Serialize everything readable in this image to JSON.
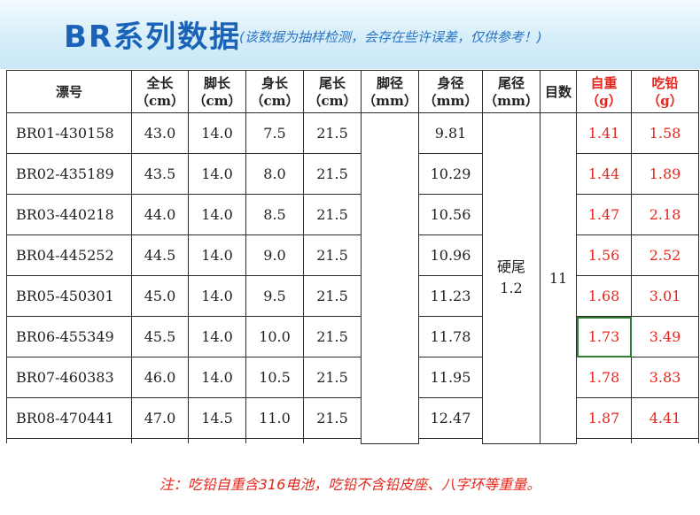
{
  "header": {
    "title": "BR系列数据",
    "subtitle": "(该数据为抽样检测，会存在些许误差，仅供参考！)"
  },
  "table": {
    "headers": [
      {
        "name": "漂号",
        "unit": ""
      },
      {
        "name": "全长",
        "unit": "（cm）"
      },
      {
        "name": "脚长",
        "unit": "（cm）"
      },
      {
        "name": "身长",
        "unit": "（cm）"
      },
      {
        "name": "尾长",
        "unit": "（cm）"
      },
      {
        "name": "脚径",
        "unit": "（mm）"
      },
      {
        "name": "身径",
        "unit": "（mm）"
      },
      {
        "name": "尾径",
        "unit": "（mm）"
      },
      {
        "name": "目数",
        "unit": ""
      },
      {
        "name": "自重",
        "unit": "（g）"
      },
      {
        "name": "吃铅",
        "unit": "（g）"
      }
    ],
    "shared": {
      "tail_diameter": "硬尾\n1.2",
      "mesh": "11"
    },
    "rows": [
      {
        "code": "BR01-430158",
        "total": "43.0",
        "foot": "14.0",
        "body": "7.5",
        "tail": "21.5",
        "body_d": "9.81",
        "weight": "1.41",
        "lead": "1.58"
      },
      {
        "code": "BR02-435189",
        "total": "43.5",
        "foot": "14.0",
        "body": "8.0",
        "tail": "21.5",
        "body_d": "10.29",
        "weight": "1.44",
        "lead": "1.89"
      },
      {
        "code": "BR03-440218",
        "total": "44.0",
        "foot": "14.0",
        "body": "8.5",
        "tail": "21.5",
        "body_d": "10.56",
        "weight": "1.47",
        "lead": "2.18"
      },
      {
        "code": "BR04-445252",
        "total": "44.5",
        "foot": "14.0",
        "body": "9.0",
        "tail": "21.5",
        "body_d": "10.96",
        "weight": "1.56",
        "lead": "2.52"
      },
      {
        "code": "BR05-450301",
        "total": "45.0",
        "foot": "14.0",
        "body": "9.5",
        "tail": "21.5",
        "body_d": "11.23",
        "weight": "1.68",
        "lead": "3.01"
      },
      {
        "code": "BR06-455349",
        "total": "45.5",
        "foot": "14.0",
        "body": "10.0",
        "tail": "21.5",
        "body_d": "11.78",
        "weight": "1.73",
        "lead": "3.49"
      },
      {
        "code": "BR07-460383",
        "total": "46.0",
        "foot": "14.0",
        "body": "10.5",
        "tail": "21.5",
        "body_d": "11.95",
        "weight": "1.78",
        "lead": "3.83"
      },
      {
        "code": "BR08-470441",
        "total": "47.0",
        "foot": "14.5",
        "body": "11.0",
        "tail": "21.5",
        "body_d": "12.47",
        "weight": "1.87",
        "lead": "4.41"
      }
    ]
  },
  "note": "注：吃铅自重含316电池，吃铅不含铅皮座、八字环等重量。",
  "colors": {
    "title": "#1a63b8",
    "accent_red": "#e6261c",
    "header_bg": "#d6eef9",
    "selection": "#2e7d32"
  }
}
